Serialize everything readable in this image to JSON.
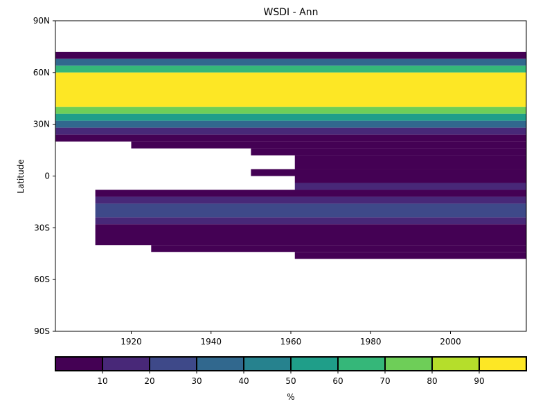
{
  "chart_data": {
    "type": "heatmap",
    "title": "WSDI - Ann",
    "xlabel": "",
    "ylabel": "Latitude",
    "xlim": [
      1901,
      2019
    ],
    "ylim": [
      -90,
      90
    ],
    "x_ticks": [
      {
        "value": 1920,
        "label": "1920"
      },
      {
        "value": 1940,
        "label": "1940"
      },
      {
        "value": 1960,
        "label": "1960"
      },
      {
        "value": 1980,
        "label": "1980"
      },
      {
        "value": 2000,
        "label": "2000"
      }
    ],
    "y_ticks": [
      {
        "value": 90,
        "label": "90N"
      },
      {
        "value": 60,
        "label": "60N"
      },
      {
        "value": 30,
        "label": "30N"
      },
      {
        "value": 0,
        "label": "0"
      },
      {
        "value": -30,
        "label": "30S"
      },
      {
        "value": -60,
        "label": "60S"
      },
      {
        "value": -90,
        "label": "90S"
      }
    ],
    "colorbar": {
      "label": "%",
      "range": [
        0,
        100
      ],
      "bins": [
        {
          "from": 0,
          "to": 10,
          "color": "#440154"
        },
        {
          "from": 10,
          "to": 20,
          "color": "#482878"
        },
        {
          "from": 20,
          "to": 30,
          "color": "#3e4989"
        },
        {
          "from": 30,
          "to": 40,
          "color": "#31688e"
        },
        {
          "from": 40,
          "to": 50,
          "color": "#26828e"
        },
        {
          "from": 50,
          "to": 60,
          "color": "#1f9e89"
        },
        {
          "from": 60,
          "to": 70,
          "color": "#35b779"
        },
        {
          "from": 70,
          "to": 80,
          "color": "#6ece58"
        },
        {
          "from": 80,
          "to": 90,
          "color": "#b5de2b"
        },
        {
          "from": 90,
          "to": 100,
          "color": "#fde725"
        }
      ],
      "ticks": [
        {
          "value": 10,
          "label": "10"
        },
        {
          "value": 20,
          "label": "20"
        },
        {
          "value": 30,
          "label": "30"
        },
        {
          "value": 40,
          "label": "40"
        },
        {
          "value": 50,
          "label": "50"
        },
        {
          "value": 60,
          "label": "60"
        },
        {
          "value": 70,
          "label": "70"
        },
        {
          "value": 80,
          "label": "80"
        },
        {
          "value": 90,
          "label": "90"
        }
      ]
    },
    "regions": [
      {
        "x": [
          1901,
          2019
        ],
        "y": [
          68,
          72
        ],
        "value": 5
      },
      {
        "x": [
          1901,
          2019
        ],
        "y": [
          64,
          68
        ],
        "value": 30
      },
      {
        "x": [
          1901,
          2019
        ],
        "y": [
          60,
          64
        ],
        "value": 65
      },
      {
        "x": [
          1901,
          2019
        ],
        "y": [
          40,
          60
        ],
        "value": 95
      },
      {
        "x": [
          1901,
          2019
        ],
        "y": [
          36,
          40
        ],
        "value": 75
      },
      {
        "x": [
          1901,
          2019
        ],
        "y": [
          32,
          36
        ],
        "value": 55
      },
      {
        "x": [
          1901,
          2019
        ],
        "y": [
          28,
          32
        ],
        "value": 35
      },
      {
        "x": [
          1901,
          2019
        ],
        "y": [
          24,
          28
        ],
        "value": 15
      },
      {
        "x": [
          1901,
          2019
        ],
        "y": [
          20,
          24
        ],
        "value": 5
      },
      {
        "x": [
          1920,
          2019
        ],
        "y": [
          16,
          20
        ],
        "value": 5
      },
      {
        "x": [
          1950,
          2019
        ],
        "y": [
          12,
          16
        ],
        "value": 5
      },
      {
        "x": [
          1961,
          2019
        ],
        "y": [
          4,
          12
        ],
        "value": 5
      },
      {
        "x": [
          1950,
          2019
        ],
        "y": [
          0,
          4
        ],
        "value": 5
      },
      {
        "x": [
          1961,
          2019
        ],
        "y": [
          -4,
          0
        ],
        "value": 5
      },
      {
        "x": [
          1961,
          2019
        ],
        "y": [
          -8,
          -4
        ],
        "value": 15
      },
      {
        "x": [
          1911,
          2019
        ],
        "y": [
          -12,
          -8
        ],
        "value": 5
      },
      {
        "x": [
          1911,
          2019
        ],
        "y": [
          -16,
          -12
        ],
        "value": 15
      },
      {
        "x": [
          1911,
          2019
        ],
        "y": [
          -24,
          -16
        ],
        "value": 25
      },
      {
        "x": [
          1911,
          2019
        ],
        "y": [
          -28,
          -24
        ],
        "value": 15
      },
      {
        "x": [
          1911,
          2019
        ],
        "y": [
          -40,
          -28
        ],
        "value": 5
      },
      {
        "x": [
          1925,
          2019
        ],
        "y": [
          -44,
          -40
        ],
        "value": 5
      },
      {
        "x": [
          1961,
          2019
        ],
        "y": [
          -48,
          -44
        ],
        "value": 5
      }
    ]
  }
}
